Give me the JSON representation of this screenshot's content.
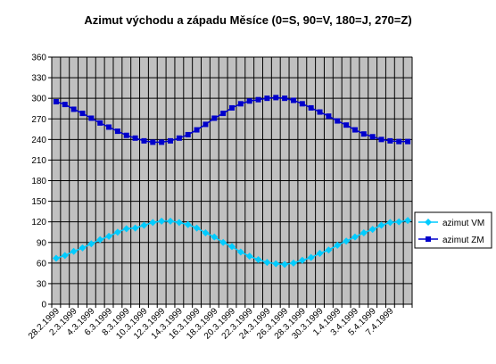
{
  "chart_data": {
    "type": "line",
    "title": "Azimut východu a západu Měsíce (0=S, 90=V, 180=J, 270=Z)",
    "xlabel": "",
    "ylabel": "",
    "ylim": [
      0,
      360
    ],
    "yticks": [
      0,
      30,
      60,
      90,
      120,
      150,
      180,
      210,
      240,
      270,
      300,
      330,
      360
    ],
    "grid": true,
    "legend_position": "right",
    "x_tick_labels": [
      "28.2.1999",
      "2.3.1999",
      "4.3.1999",
      "6.3.1999",
      "8.3.1999",
      "10.3.1999",
      "12.3.1999",
      "14.3.1999",
      "16.3.1999",
      "18.3.1999",
      "20.3.1999",
      "22.3.1999",
      "24.3.1999",
      "26.3.1999",
      "28.3.1999",
      "30.3.1999",
      "1.4.1999",
      "3.4.1999",
      "5.4.1999",
      "7.4.1999"
    ],
    "x": [
      "28.2.1999",
      "1.3.1999",
      "2.3.1999",
      "3.3.1999",
      "4.3.1999",
      "5.3.1999",
      "6.3.1999",
      "7.3.1999",
      "8.3.1999",
      "9.3.1999",
      "10.3.1999",
      "11.3.1999",
      "12.3.1999",
      "13.3.1999",
      "14.3.1999",
      "15.3.1999",
      "16.3.1999",
      "17.3.1999",
      "18.3.1999",
      "19.3.1999",
      "20.3.1999",
      "21.3.1999",
      "22.3.1999",
      "23.3.1999",
      "24.3.1999",
      "25.3.1999",
      "26.3.1999",
      "27.3.1999",
      "28.3.1999",
      "29.3.1999",
      "30.3.1999",
      "31.3.1999",
      "1.4.1999",
      "2.4.1999",
      "3.4.1999",
      "4.4.1999",
      "5.4.1999",
      "6.4.1999",
      "7.4.1999",
      "8.4.1999",
      "9.4.1999"
    ],
    "series": [
      {
        "name": "azimut VM",
        "color": "#00CCFF",
        "marker": "diamond",
        "values": [
          67,
          71,
          77,
          82,
          88,
          94,
          99,
          105,
          110,
          111,
          115,
          119,
          121,
          121,
          119,
          116,
          111,
          104,
          98,
          90,
          84,
          76,
          70,
          65,
          61,
          59,
          58,
          60,
          64,
          68,
          74,
          79,
          86,
          92,
          98,
          104,
          109,
          115,
          119,
          120,
          122
        ]
      },
      {
        "name": "azimut ZM",
        "color": "#0000CC",
        "marker": "square",
        "values": [
          295,
          291,
          284,
          278,
          271,
          264,
          258,
          252,
          246,
          242,
          238,
          236,
          236,
          238,
          242,
          247,
          254,
          262,
          271,
          278,
          286,
          292,
          296,
          298,
          300,
          301,
          300,
          297,
          292,
          286,
          280,
          274,
          267,
          261,
          254,
          248,
          244,
          240,
          238,
          237,
          237
        ]
      }
    ]
  }
}
